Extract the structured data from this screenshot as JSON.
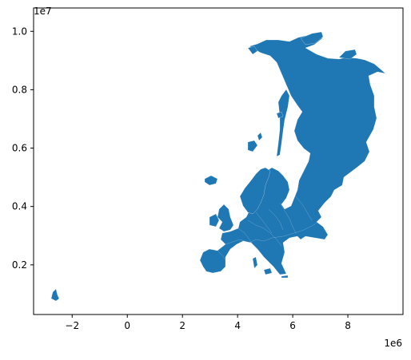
{
  "chart_data": {
    "type": "map",
    "x": {
      "ticks": [
        -2,
        0,
        2,
        4,
        6,
        8
      ],
      "tick_labels": [
        "−2",
        "0",
        "2",
        "4",
        "6",
        "8"
      ],
      "offset_label": "1e6",
      "lim": [
        -3.4,
        10.0
      ]
    },
    "y": {
      "ticks": [
        0.2,
        0.4,
        0.6,
        0.8,
        1.0
      ],
      "tick_labels": [
        "0.2",
        "0.4",
        "0.6",
        "0.8",
        "1.0"
      ],
      "offset_label": "1e7",
      "lim": [
        0.03,
        1.08
      ]
    },
    "fill_color": "#1f77b4",
    "grid": false
  }
}
